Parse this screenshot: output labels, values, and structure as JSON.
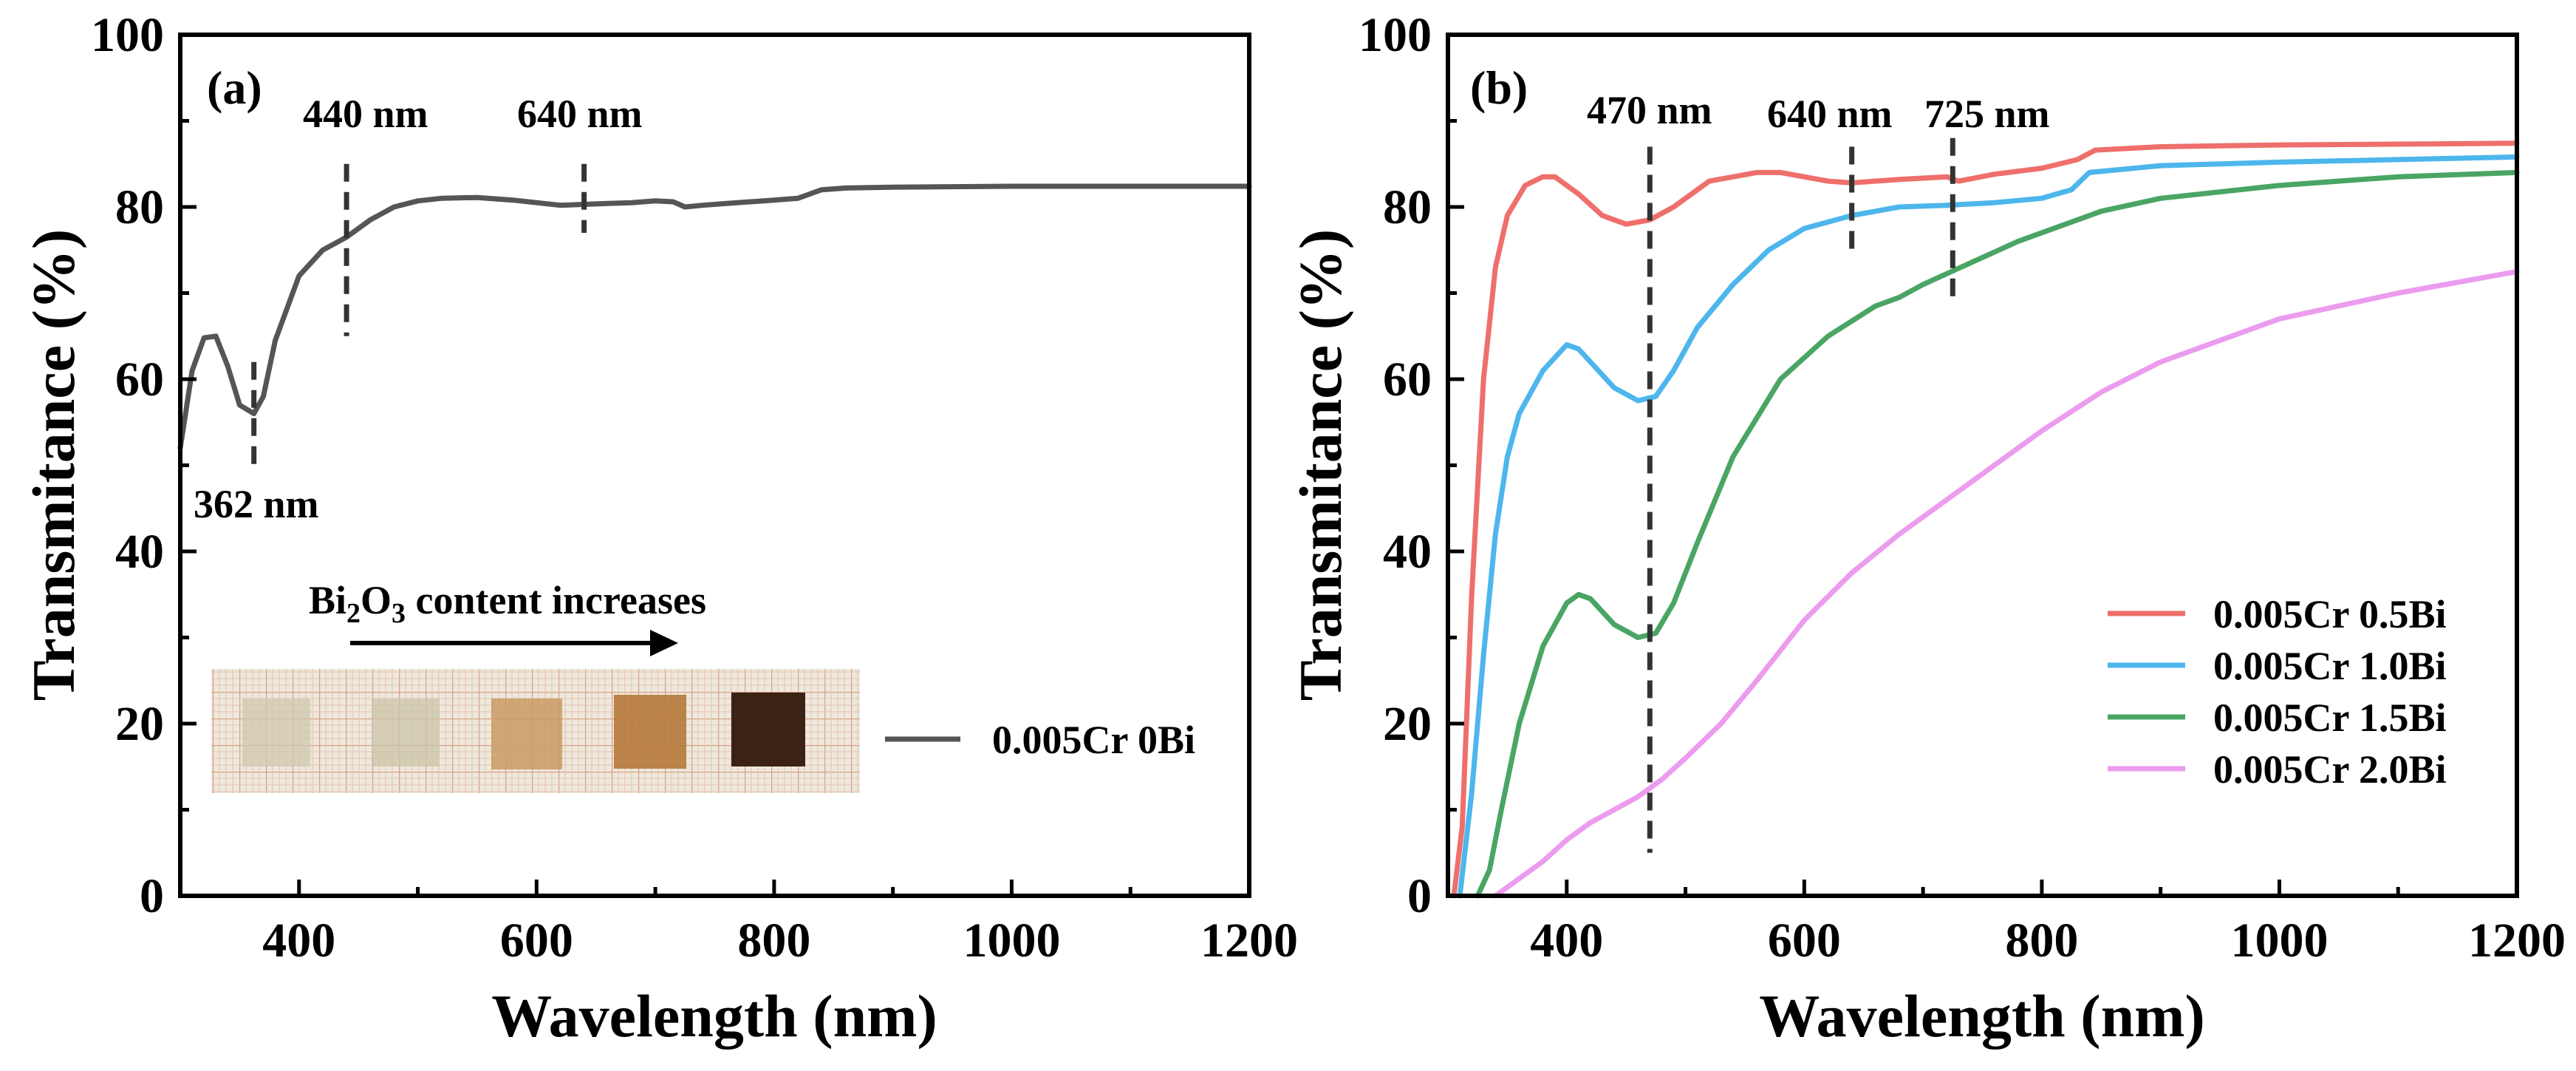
{
  "colors": {
    "series_a": "#555555",
    "red": "#ee6f6b",
    "blue": "#4db6ec",
    "green": "#4aa564",
    "pink": "#ec9cee",
    "grid_paper": "#eee8dd",
    "grid_line": "#d9a185"
  },
  "chart_data": [
    {
      "panel": "(a)",
      "type": "line",
      "xlabel": "Wavelength (nm)",
      "ylabel": "Transmitance (%)",
      "xlim": [
        300,
        1200
      ],
      "ylim": [
        0,
        100
      ],
      "xticks": [
        400,
        600,
        800,
        1000,
        1200
      ],
      "yticks": [
        0,
        20,
        40,
        60,
        80,
        100
      ],
      "xtick_labels": [
        "400",
        "600",
        "800",
        "1000",
        "1200"
      ],
      "ytick_labels": [
        "0",
        "20",
        "40",
        "60",
        "80",
        "100"
      ],
      "series": [
        {
          "name": "0.005Cr 0Bi",
          "color": "#555555",
          "x": [
            300,
            310,
            320,
            330,
            340,
            350,
            362,
            370,
            380,
            400,
            420,
            440,
            460,
            480,
            500,
            520,
            550,
            580,
            600,
            620,
            640,
            660,
            680,
            700,
            715,
            725,
            740,
            760,
            800,
            820,
            830,
            840,
            860,
            900,
            1000,
            1100,
            1200
          ],
          "y": [
            52,
            61,
            64.8,
            65,
            61.5,
            57,
            56,
            58,
            64.5,
            72,
            75,
            76.5,
            78.5,
            80,
            80.7,
            81,
            81.1,
            80.8,
            80.5,
            80.2,
            80.3,
            80.4,
            80.5,
            80.7,
            80.6,
            80.0,
            80.2,
            80.4,
            80.8,
            81.0,
            81.5,
            82.0,
            82.2,
            82.3,
            82.4,
            82.4,
            82.4
          ]
        }
      ],
      "annotations": [
        {
          "text": "440 nm",
          "x": 440
        },
        {
          "text": "640 nm",
          "x": 640
        },
        {
          "text": "362 nm",
          "x": 362
        }
      ],
      "inset": {
        "caption": "Bi",
        "caption_sub1": "2",
        "caption_mid": "O",
        "caption_sub2": "3",
        "caption_tail": " content increases",
        "sample_colors": [
          "#cfc9ad",
          "#cbc6a8",
          "#c99a63",
          "#b5793a",
          "#3b2214"
        ]
      },
      "legend": [
        {
          "label": "0.005Cr 0Bi",
          "color": "#555555"
        }
      ]
    },
    {
      "panel": "(b)",
      "type": "line",
      "xlabel": "Wavelength (nm)",
      "ylabel": "Transmitance (%)",
      "xlim": [
        300,
        1200
      ],
      "ylim": [
        0,
        100
      ],
      "xticks": [
        400,
        600,
        800,
        1000,
        1200
      ],
      "yticks": [
        0,
        20,
        40,
        60,
        80,
        100
      ],
      "xtick_labels": [
        "400",
        "600",
        "800",
        "1000",
        "1200"
      ],
      "ytick_labels": [
        "0",
        "20",
        "40",
        "60",
        "80",
        "100"
      ],
      "series": [
        {
          "name": "0.005Cr 0.5Bi",
          "color": "#ee6f6b",
          "x": [
            305,
            312,
            320,
            330,
            340,
            350,
            365,
            380,
            390,
            410,
            430,
            450,
            470,
            490,
            520,
            560,
            580,
            600,
            620,
            640,
            680,
            720,
            730,
            760,
            800,
            830,
            845,
            900,
            1000,
            1100,
            1200
          ],
          "y": [
            0,
            8,
            35,
            60,
            73,
            79,
            82.5,
            83.5,
            83.5,
            81.5,
            79,
            78,
            78.5,
            80,
            83,
            84,
            84,
            83.5,
            83,
            82.8,
            83.2,
            83.5,
            83,
            83.8,
            84.5,
            85.5,
            86.6,
            87,
            87.2,
            87.3,
            87.4
          ]
        },
        {
          "name": "0.005Cr 1.0Bi",
          "color": "#4db6ec",
          "x": [
            310,
            320,
            330,
            340,
            350,
            360,
            380,
            400,
            410,
            420,
            440,
            460,
            475,
            490,
            510,
            540,
            570,
            600,
            640,
            680,
            720,
            760,
            800,
            825,
            840,
            900,
            1000,
            1100,
            1200
          ],
          "y": [
            0,
            12,
            28,
            42,
            51,
            56,
            61,
            64,
            63.5,
            62,
            59,
            57.5,
            58,
            61,
            66,
            71,
            75,
            77.5,
            79,
            80,
            80.2,
            80.5,
            81,
            82,
            84,
            84.8,
            85.2,
            85.5,
            85.8
          ]
        },
        {
          "name": "0.005Cr 1.5Bi",
          "color": "#4aa564",
          "x": [
            325,
            335,
            345,
            360,
            380,
            400,
            410,
            420,
            440,
            460,
            475,
            490,
            510,
            540,
            580,
            620,
            660,
            670,
            680,
            700,
            740,
            780,
            820,
            850,
            900,
            1000,
            1100,
            1200
          ],
          "y": [
            0,
            3,
            10,
            20,
            29,
            34,
            35,
            34.5,
            31.5,
            30,
            30.5,
            34,
            41,
            51,
            60,
            65,
            68.5,
            69,
            69.5,
            71,
            73.5,
            76,
            78,
            79.5,
            81,
            82.5,
            83.5,
            84
          ]
        },
        {
          "name": "0.005Cr 2.0Bi",
          "color": "#ec9cee",
          "x": [
            340,
            360,
            380,
            400,
            420,
            440,
            460,
            480,
            500,
            530,
            560,
            600,
            640,
            680,
            720,
            760,
            800,
            850,
            900,
            1000,
            1100,
            1200
          ],
          "y": [
            0,
            2,
            4,
            6.5,
            8.5,
            10,
            11.5,
            13.5,
            16,
            20,
            25,
            32,
            37.5,
            42,
            46,
            50,
            54,
            58.5,
            62,
            67,
            70,
            72.5
          ]
        }
      ],
      "annotations": [
        {
          "text": "470 nm",
          "x": 470
        },
        {
          "text": "640 nm",
          "x": 640
        },
        {
          "text": "725 nm",
          "x": 725
        }
      ],
      "legend": [
        {
          "label": "0.005Cr 0.5Bi",
          "color": "#ee6f6b"
        },
        {
          "label": "0.005Cr 1.0Bi",
          "color": "#4db6ec"
        },
        {
          "label": "0.005Cr 1.5Bi",
          "color": "#4aa564"
        },
        {
          "label": "0.005Cr 2.0Bi",
          "color": "#ec9cee"
        }
      ]
    }
  ]
}
